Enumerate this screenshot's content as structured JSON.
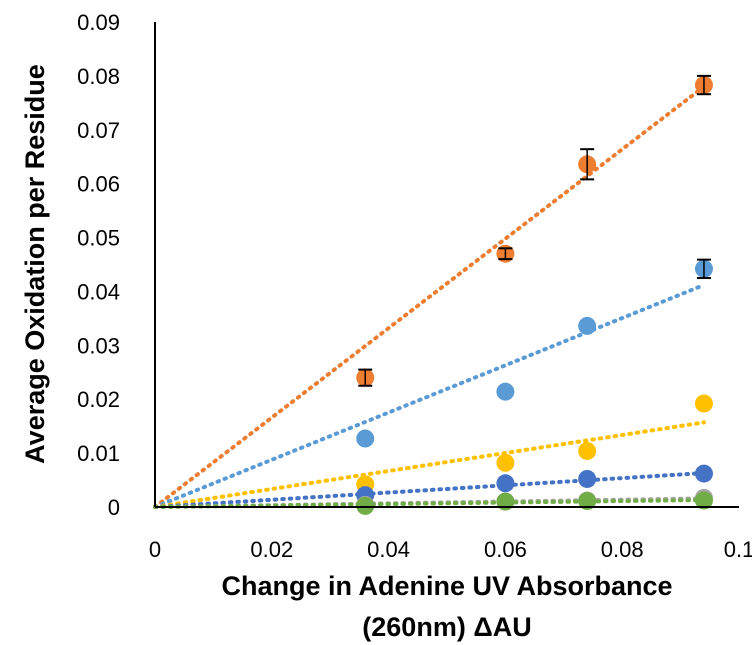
{
  "chart_data": {
    "type": "scatter",
    "title": "",
    "xlabel": [
      "Change in Adenine UV Absorbance",
      "(260nm) ΔAU"
    ],
    "ylabel": "Average Oxidation per Residue",
    "xlim": [
      0,
      0.1
    ],
    "ylim": [
      0,
      0.09
    ],
    "x_ticks": [
      "0",
      "0.02",
      "0.04",
      "0.06",
      "0.08",
      "0.1"
    ],
    "y_ticks": [
      "0",
      "0.01",
      "0.02",
      "0.03",
      "0.04",
      "0.05",
      "0.06",
      "0.07",
      "0.08",
      "0.09"
    ],
    "grid": false,
    "legend": "none",
    "series": [
      {
        "color": "#ED7D31",
        "trendline": [
          [
            0,
            0
          ],
          [
            0.094,
            0.078
          ]
        ],
        "points": [
          {
            "x": 0.036,
            "y": 0.024,
            "err": 0.0015
          },
          {
            "x": 0.06,
            "y": 0.047,
            "err": 0.001
          },
          {
            "x": 0.074,
            "y": 0.0636,
            "err": 0.0028
          },
          {
            "x": 0.094,
            "y": 0.0783,
            "err": 0.0017
          }
        ]
      },
      {
        "color": "#5B9BD5",
        "trendline": [
          [
            0,
            0
          ],
          [
            0.094,
            0.0412
          ]
        ],
        "points": [
          {
            "x": 0.036,
            "y": 0.0127
          },
          {
            "x": 0.06,
            "y": 0.0214
          },
          {
            "x": 0.074,
            "y": 0.0336
          },
          {
            "x": 0.094,
            "y": 0.0442,
            "err": 0.0017
          }
        ]
      },
      {
        "color": "#FFC000",
        "trendline": [
          [
            0,
            0
          ],
          [
            0.094,
            0.0157
          ]
        ],
        "points": [
          {
            "x": 0.036,
            "y": 0.0042
          },
          {
            "x": 0.06,
            "y": 0.0082
          },
          {
            "x": 0.074,
            "y": 0.0104
          },
          {
            "x": 0.094,
            "y": 0.0192
          }
        ]
      },
      {
        "color": "#4472C4",
        "trendline": [
          [
            0,
            0
          ],
          [
            0.094,
            0.0063
          ]
        ],
        "points": [
          {
            "x": 0.036,
            "y": 0.0022
          },
          {
            "x": 0.06,
            "y": 0.0044
          },
          {
            "x": 0.074,
            "y": 0.0052
          },
          {
            "x": 0.094,
            "y": 0.0062
          }
        ]
      },
      {
        "color": "#A5A5A5",
        "trendline": [
          [
            0,
            0
          ],
          [
            0.094,
            0.0016
          ]
        ],
        "points": [
          {
            "x": 0.036,
            "y": 0.0004
          },
          {
            "x": 0.06,
            "y": 0.001
          },
          {
            "x": 0.074,
            "y": 0.0012
          },
          {
            "x": 0.094,
            "y": 0.0017
          }
        ]
      },
      {
        "color": "#70AD47",
        "trendline": [
          [
            0,
            0
          ],
          [
            0.094,
            0.0013
          ]
        ],
        "points": [
          {
            "x": 0.036,
            "y": 0.0002
          },
          {
            "x": 0.06,
            "y": 0.001
          },
          {
            "x": 0.074,
            "y": 0.0011
          },
          {
            "x": 0.094,
            "y": 0.0012
          }
        ]
      }
    ]
  }
}
